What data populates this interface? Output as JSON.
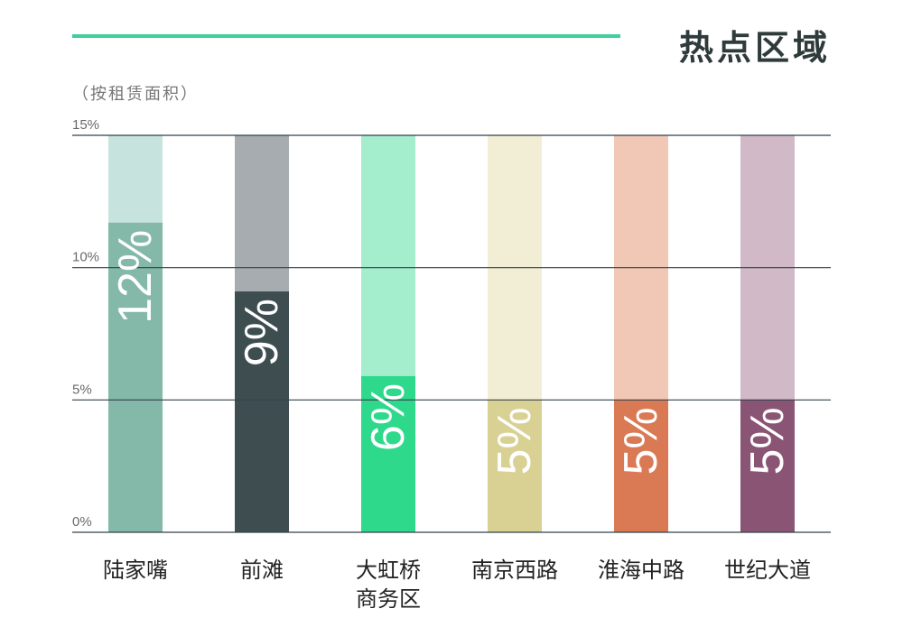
{
  "header": {
    "title": "热点区域",
    "subtitle": "（按租赁面积）"
  },
  "colors": {
    "accent_rule": "#3ecf9a",
    "grid": "#33424a",
    "tick_text": "#6a6a6a",
    "category_text": "#222222"
  },
  "chart_data": {
    "type": "bar",
    "title": "热点区域",
    "subtitle": "（按租赁面积）",
    "xlabel": "",
    "ylabel": "",
    "ylim": [
      0,
      15
    ],
    "yticks": [
      0,
      5,
      10,
      15
    ],
    "ytick_labels": [
      "0%",
      "5%",
      "10%",
      "15%"
    ],
    "grid": true,
    "legend": "none",
    "categories": [
      [
        "陆家嘴"
      ],
      [
        "前滩"
      ],
      [
        "大虹桥",
        "商务区"
      ],
      [
        "南京西路"
      ],
      [
        "淮海中路"
      ],
      [
        "世纪大道"
      ]
    ],
    "values": [
      11.7,
      9.1,
      5.9,
      5.0,
      5.0,
      5.0
    ],
    "data_labels": [
      "12%",
      "9%",
      "6%",
      "5%",
      "5%",
      "5%"
    ],
    "bar_colors": [
      "#84b9a9",
      "#3e4e50",
      "#2fd98c",
      "#d9d194",
      "#d97a55",
      "#8a5474"
    ],
    "bar_bg_colors": [
      "#c7e3dd",
      "#a6acb0",
      "#a4edcd",
      "#f2eed5",
      "#f1c7b6",
      "#d1b9c7"
    ]
  }
}
